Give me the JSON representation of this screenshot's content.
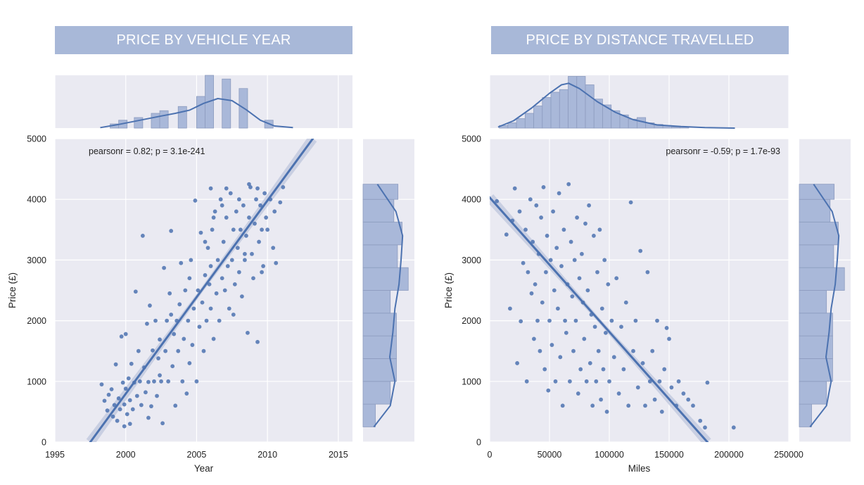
{
  "banners": {
    "left": "PRICE BY VEHICLE YEAR",
    "right": "PRICE BY DISTANCE TRAVELLED"
  },
  "colors": {
    "banner": "#a8b8d8",
    "panel_bg": "#eaeaf2",
    "grid": "#ffffff",
    "points": "#4c72b0",
    "hist_fill": "#a9b8d9",
    "hist_edge": "#8d9cbf",
    "ci_band": "#c3cadf"
  },
  "chart_data": [
    {
      "type": "scatter",
      "title": "PRICE BY VEHICLE YEAR",
      "xlabel": "Year",
      "ylabel": "Price (£)",
      "xlim": [
        1995,
        2016
      ],
      "ylim": [
        0,
        5000
      ],
      "x_ticks": [
        "1995",
        "2000",
        "2005",
        "2010",
        "2015"
      ],
      "y_ticks": [
        "0",
        "1000",
        "2000",
        "3000",
        "4000",
        "5000"
      ],
      "annotation": "pearsonr = 0.82; p = 3.1e-241",
      "grid": true,
      "regression": {
        "x": [
          1997.5,
          2013.2
        ],
        "y": [
          0,
          5000
        ]
      },
      "marginal_x_hist": {
        "bin_centers": [
          1999.2,
          1999.8,
          2000.9,
          2002.1,
          2002.7,
          2004.0,
          2005.3,
          2005.9,
          2007.1,
          2008.3,
          2010.1
        ],
        "heights": [
          0.08,
          0.15,
          0.2,
          0.28,
          0.33,
          0.41,
          0.6,
          1.0,
          0.93,
          0.75,
          0.15
        ]
      },
      "marginal_x_kde": {
        "x": [
          1998.2,
          1999.5,
          2001,
          2002.5,
          2003.5,
          2004.5,
          2005.5,
          2006.5,
          2007.5,
          2008.5,
          2009.5,
          2010.5,
          2011.8
        ],
        "density": [
          0.01,
          0.07,
          0.15,
          0.23,
          0.28,
          0.34,
          0.47,
          0.56,
          0.52,
          0.35,
          0.15,
          0.04,
          0.01
        ]
      },
      "marginal_y_hist": {
        "bin_edges": [
          250,
          625,
          1000,
          1375,
          1750,
          2125,
          2500,
          2875,
          3250,
          3625,
          4000,
          4250
        ],
        "widths": [
          0.24,
          0.53,
          0.65,
          0.65,
          0.65,
          0.53,
          0.88,
          0.67,
          0.76,
          0.6,
          0.68
        ]
      },
      "marginal_y_kde": {
        "y": [
          250,
          600,
          1000,
          1400,
          1800,
          2200,
          2600,
          3000,
          3400,
          3800,
          4250
        ],
        "density": [
          0.21,
          0.53,
          0.62,
          0.52,
          0.58,
          0.62,
          0.7,
          0.74,
          0.77,
          0.64,
          0.28
        ]
      },
      "points": [
        [
          1998.3,
          950
        ],
        [
          1998.5,
          680
        ],
        [
          1998.7,
          520
        ],
        [
          1998.8,
          780
        ],
        [
          1999,
          870
        ],
        [
          1999.1,
          420
        ],
        [
          1999.2,
          610
        ],
        [
          1999.3,
          1280
        ],
        [
          1999.4,
          350
        ],
        [
          1999.5,
          720
        ],
        [
          1999.6,
          540
        ],
        [
          1999.7,
          1740
        ],
        [
          1999.8,
          980
        ],
        [
          1999.9,
          620
        ],
        [
          2000,
          1780
        ],
        [
          2000,
          880
        ],
        [
          2000.1,
          460
        ],
        [
          2000.2,
          1050
        ],
        [
          2000.3,
          690
        ],
        [
          2000.4,
          1290
        ],
        [
          2000.5,
          540
        ],
        [
          2000.6,
          980
        ],
        [
          2000.7,
          2480
        ],
        [
          2000.8,
          760
        ],
        [
          2000.9,
          1500
        ],
        [
          2001,
          1000
        ],
        [
          2001.1,
          610
        ],
        [
          2001.2,
          3400
        ],
        [
          2001.3,
          1230
        ],
        [
          2001.4,
          820
        ],
        [
          2001.5,
          1950
        ],
        [
          2001.6,
          990
        ],
        [
          2001.7,
          2250
        ],
        [
          2001.8,
          590
        ],
        [
          2001.9,
          1510
        ],
        [
          2002,
          1000
        ],
        [
          2002.1,
          2000
        ],
        [
          2002.2,
          760
        ],
        [
          2002.3,
          1380
        ],
        [
          2002.4,
          1690
        ],
        [
          2002.5,
          1000
        ],
        [
          2002.6,
          310
        ],
        [
          2002.7,
          2870
        ],
        [
          2002.8,
          1500
        ],
        [
          2002.9,
          2000
        ],
        [
          2003,
          1000
        ],
        [
          2003.1,
          2450
        ],
        [
          2003.2,
          3480
        ],
        [
          2003.3,
          1250
        ],
        [
          2003.4,
          1780
        ],
        [
          2003.5,
          600
        ],
        [
          2003.6,
          2000
        ],
        [
          2003.7,
          1500
        ],
        [
          2003.8,
          2270
        ],
        [
          2003.9,
          2950
        ],
        [
          2004,
          1000
        ],
        [
          2004.1,
          1700
        ],
        [
          2004.2,
          2500
        ],
        [
          2004.3,
          800
        ],
        [
          2004.4,
          2000
        ],
        [
          2004.5,
          1300
        ],
        [
          2004.6,
          3000
        ],
        [
          2004.7,
          1600
        ],
        [
          2004.8,
          2200
        ],
        [
          2004.9,
          3980
        ],
        [
          2005,
          1000
        ],
        [
          2005.1,
          2500
        ],
        [
          2005.2,
          1900
        ],
        [
          2005.3,
          3450
        ],
        [
          2005.4,
          2300
        ],
        [
          2005.5,
          1500
        ],
        [
          2005.6,
          2750
        ],
        [
          2005.7,
          2000
        ],
        [
          2005.8,
          3200
        ],
        [
          2005.9,
          2600
        ],
        [
          2006,
          2900
        ],
        [
          2006,
          2200
        ],
        [
          2006.1,
          3500
        ],
        [
          2006.2,
          1700
        ],
        [
          2006.3,
          3800
        ],
        [
          2006.4,
          2450
        ],
        [
          2006.5,
          3000
        ],
        [
          2006.6,
          2000
        ],
        [
          2006.7,
          4000
        ],
        [
          2006.8,
          2700
        ],
        [
          2006.9,
          3300
        ],
        [
          2007,
          2500
        ],
        [
          2007.1,
          3700
        ],
        [
          2007.2,
          2900
        ],
        [
          2007.3,
          2200
        ],
        [
          2007.4,
          4100
        ],
        [
          2007.5,
          3000
        ],
        [
          2007.6,
          3500
        ],
        [
          2007.7,
          2600
        ],
        [
          2007.8,
          3800
        ],
        [
          2007.9,
          3200
        ],
        [
          2008,
          2800
        ],
        [
          2008,
          4000
        ],
        [
          2008.1,
          3500
        ],
        [
          2008.2,
          2400
        ],
        [
          2008.3,
          3900
        ],
        [
          2008.4,
          3000
        ],
        [
          2008.5,
          3400
        ],
        [
          2008.6,
          1800
        ],
        [
          2008.7,
          3700
        ],
        [
          2008.8,
          4200
        ],
        [
          2008.9,
          3100
        ],
        [
          2009,
          2700
        ],
        [
          2009.1,
          3600
        ],
        [
          2009.2,
          4000
        ],
        [
          2009.3,
          1650
        ],
        [
          2009.4,
          3300
        ],
        [
          2009.5,
          3900
        ],
        [
          2009.6,
          3500
        ],
        [
          2009.7,
          2900
        ],
        [
          2009.8,
          4100
        ],
        [
          2009.9,
          3700
        ],
        [
          2010,
          3500
        ],
        [
          2010.2,
          4000
        ],
        [
          2010.4,
          3200
        ],
        [
          2010.6,
          2950
        ],
        [
          2010.9,
          3950
        ],
        [
          2011.1,
          4200
        ],
        [
          2010.5,
          3800
        ],
        [
          2009.6,
          2800
        ],
        [
          2008.4,
          3100
        ],
        [
          2007.6,
          2100
        ],
        [
          2006.8,
          3900
        ],
        [
          2005.6,
          3300
        ],
        [
          2004.5,
          2700
        ],
        [
          2003.2,
          2100
        ],
        [
          2002.4,
          1100
        ],
        [
          2001.6,
          400
        ],
        [
          2000.3,
          300
        ],
        [
          1999.9,
          260
        ],
        [
          2006.2,
          3700
        ],
        [
          2007.1,
          4180
        ],
        [
          2008.7,
          4250
        ],
        [
          2009.3,
          4180
        ],
        [
          2006,
          4180
        ]
      ]
    },
    {
      "type": "scatter",
      "title": "PRICE BY DISTANCE TRAVELLED",
      "xlabel": "Miles",
      "ylabel": "Price (£)",
      "xlim": [
        0,
        250000
      ],
      "ylim": [
        0,
        5000
      ],
      "x_ticks": [
        "0",
        "50000",
        "100000",
        "150000",
        "200000",
        "250000"
      ],
      "y_ticks": [
        "0",
        "1000",
        "2000",
        "3000",
        "4000",
        "5000"
      ],
      "annotation": "pearsonr = -0.59; p = 1.7e-93",
      "grid": true,
      "regression": {
        "x": [
          0,
          182000
        ],
        "y": [
          4030,
          0
        ]
      },
      "marginal_x_hist": {
        "bin_start": 8000,
        "bin_width": 7200,
        "heights": [
          0.05,
          0.1,
          0.18,
          0.28,
          0.42,
          0.58,
          0.68,
          0.73,
          0.98,
          0.98,
          0.82,
          0.55,
          0.44,
          0.33,
          0.25,
          0.17,
          0.2,
          0.1,
          0.07,
          0.05,
          0.02,
          0.02
        ]
      },
      "marginal_x_kde": {
        "x": [
          7000,
          20000,
          35000,
          50000,
          60000,
          66000,
          75000,
          90000,
          105000,
          120000,
          140000,
          160000,
          180000,
          205000
        ],
        "density": [
          0.02,
          0.14,
          0.38,
          0.66,
          0.82,
          0.85,
          0.75,
          0.5,
          0.3,
          0.16,
          0.06,
          0.03,
          0.01,
          0.0
        ]
      },
      "marginal_y_hist": {
        "bin_edges": [
          250,
          625,
          1000,
          1375,
          1750,
          2125,
          2500,
          2875,
          3250,
          3625,
          4000,
          4250
        ],
        "widths": [
          0.24,
          0.53,
          0.65,
          0.65,
          0.65,
          0.53,
          0.88,
          0.67,
          0.76,
          0.6,
          0.68
        ]
      },
      "marginal_y_kde": {
        "y": [
          250,
          600,
          1000,
          1400,
          1800,
          2200,
          2600,
          3000,
          3400,
          3800,
          4250
        ],
        "density": [
          0.21,
          0.53,
          0.62,
          0.52,
          0.58,
          0.62,
          0.7,
          0.74,
          0.77,
          0.64,
          0.28
        ]
      },
      "points": [
        [
          6000,
          3970
        ],
        [
          14000,
          3420
        ],
        [
          17000,
          2200
        ],
        [
          19000,
          3650
        ],
        [
          21000,
          4180
        ],
        [
          23000,
          1300
        ],
        [
          25000,
          3800
        ],
        [
          26000,
          1990
        ],
        [
          28000,
          2950
        ],
        [
          30000,
          3500
        ],
        [
          31000,
          1000
        ],
        [
          32000,
          2800
        ],
        [
          34000,
          4000
        ],
        [
          35000,
          2450
        ],
        [
          36000,
          3300
        ],
        [
          37000,
          1700
        ],
        [
          38000,
          2600
        ],
        [
          39000,
          3900
        ],
        [
          40000,
          2000
        ],
        [
          41000,
          3100
        ],
        [
          42000,
          1500
        ],
        [
          43000,
          3700
        ],
        [
          44000,
          2300
        ],
        [
          45000,
          4200
        ],
        [
          46000,
          1200
        ],
        [
          47000,
          2800
        ],
        [
          48000,
          3400
        ],
        [
          49000,
          850
        ],
        [
          50000,
          2000
        ],
        [
          51000,
          3000
        ],
        [
          52000,
          1600
        ],
        [
          53000,
          3800
        ],
        [
          54000,
          2500
        ],
        [
          55000,
          1000
        ],
        [
          56000,
          3200
        ],
        [
          57000,
          2200
        ],
        [
          58000,
          4100
        ],
        [
          59000,
          1400
        ],
        [
          60000,
          2900
        ],
        [
          61000,
          600
        ],
        [
          62000,
          3500
        ],
        [
          63000,
          2000
        ],
        [
          64000,
          1800
        ],
        [
          65000,
          2600
        ],
        [
          66000,
          4250
        ],
        [
          67000,
          1000
        ],
        [
          68000,
          3300
        ],
        [
          69000,
          2400
        ],
        [
          70000,
          1500
        ],
        [
          71000,
          3000
        ],
        [
          72000,
          2000
        ],
        [
          73000,
          3700
        ],
        [
          74000,
          800
        ],
        [
          75000,
          2700
        ],
        [
          76000,
          1200
        ],
        [
          77000,
          3100
        ],
        [
          78000,
          2300
        ],
        [
          79000,
          1700
        ],
        [
          80000,
          3600
        ],
        [
          81000,
          1000
        ],
        [
          82000,
          2500
        ],
        [
          83000,
          3900
        ],
        [
          84000,
          1300
        ],
        [
          85000,
          2100
        ],
        [
          86000,
          600
        ],
        [
          87000,
          3400
        ],
        [
          88000,
          1900
        ],
        [
          89000,
          1000
        ],
        [
          90000,
          2800
        ],
        [
          91000,
          1500
        ],
        [
          92000,
          3500
        ],
        [
          93000,
          700
        ],
        [
          94000,
          2200
        ],
        [
          95000,
          1200
        ],
        [
          96000,
          3000
        ],
        [
          97000,
          1800
        ],
        [
          98000,
          500
        ],
        [
          99000,
          2600
        ],
        [
          100000,
          1000
        ],
        [
          102000,
          2000
        ],
        [
          104000,
          1400
        ],
        [
          106000,
          2700
        ],
        [
          108000,
          800
        ],
        [
          110000,
          1900
        ],
        [
          112000,
          1200
        ],
        [
          114000,
          2300
        ],
        [
          116000,
          600
        ],
        [
          118000,
          3950
        ],
        [
          120000,
          1500
        ],
        [
          122000,
          2000
        ],
        [
          124000,
          900
        ],
        [
          126000,
          3150
        ],
        [
          128000,
          1300
        ],
        [
          130000,
          600
        ],
        [
          132000,
          2800
        ],
        [
          134000,
          1000
        ],
        [
          136000,
          1500
        ],
        [
          138000,
          700
        ],
        [
          140000,
          2000
        ],
        [
          142000,
          1000
        ],
        [
          144000,
          500
        ],
        [
          146000,
          1200
        ],
        [
          148000,
          1880
        ],
        [
          150000,
          1700
        ],
        [
          152000,
          900
        ],
        [
          156000,
          600
        ],
        [
          158000,
          1000
        ],
        [
          162000,
          800
        ],
        [
          166000,
          700
        ],
        [
          170000,
          600
        ],
        [
          176000,
          350
        ],
        [
          180000,
          240
        ],
        [
          182000,
          980
        ],
        [
          204000,
          240
        ]
      ]
    }
  ]
}
